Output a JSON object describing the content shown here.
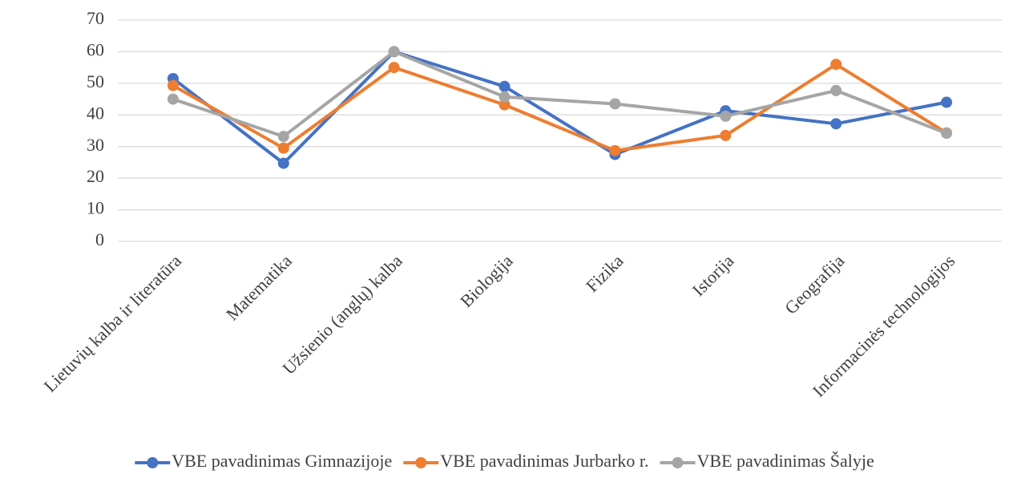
{
  "chart_data": {
    "type": "line",
    "categories": [
      "Lietuvių kalba ir literatūra",
      "Matematika",
      "Užsienio (anglų) kalba",
      "Biologija",
      "Fizika",
      "Istorija",
      "Geografija",
      "Informacinės technologijos"
    ],
    "series": [
      {
        "name": "VBE pavadinimas Gimnazijoje",
        "color": "#4472c4",
        "values": [
          51.5,
          24.7,
          60,
          49,
          27.5,
          41.3,
          37.2,
          44
        ]
      },
      {
        "name": "VBE pavadinimas Jurbarko r.",
        "color": "#ed7d31",
        "values": [
          49.3,
          29.5,
          55,
          43.2,
          28.7,
          33.5,
          56,
          34.3
        ]
      },
      {
        "name": "VBE pavadinimas Šalyje",
        "color": "#a5a5a5",
        "values": [
          45,
          33.2,
          60,
          45.7,
          43.5,
          39.6,
          47.7,
          34.2
        ]
      }
    ],
    "ylim": [
      0,
      70
    ],
    "yticks": [
      0,
      10,
      20,
      30,
      40,
      50,
      60,
      70
    ],
    "grid": true,
    "legend": "bottom"
  }
}
